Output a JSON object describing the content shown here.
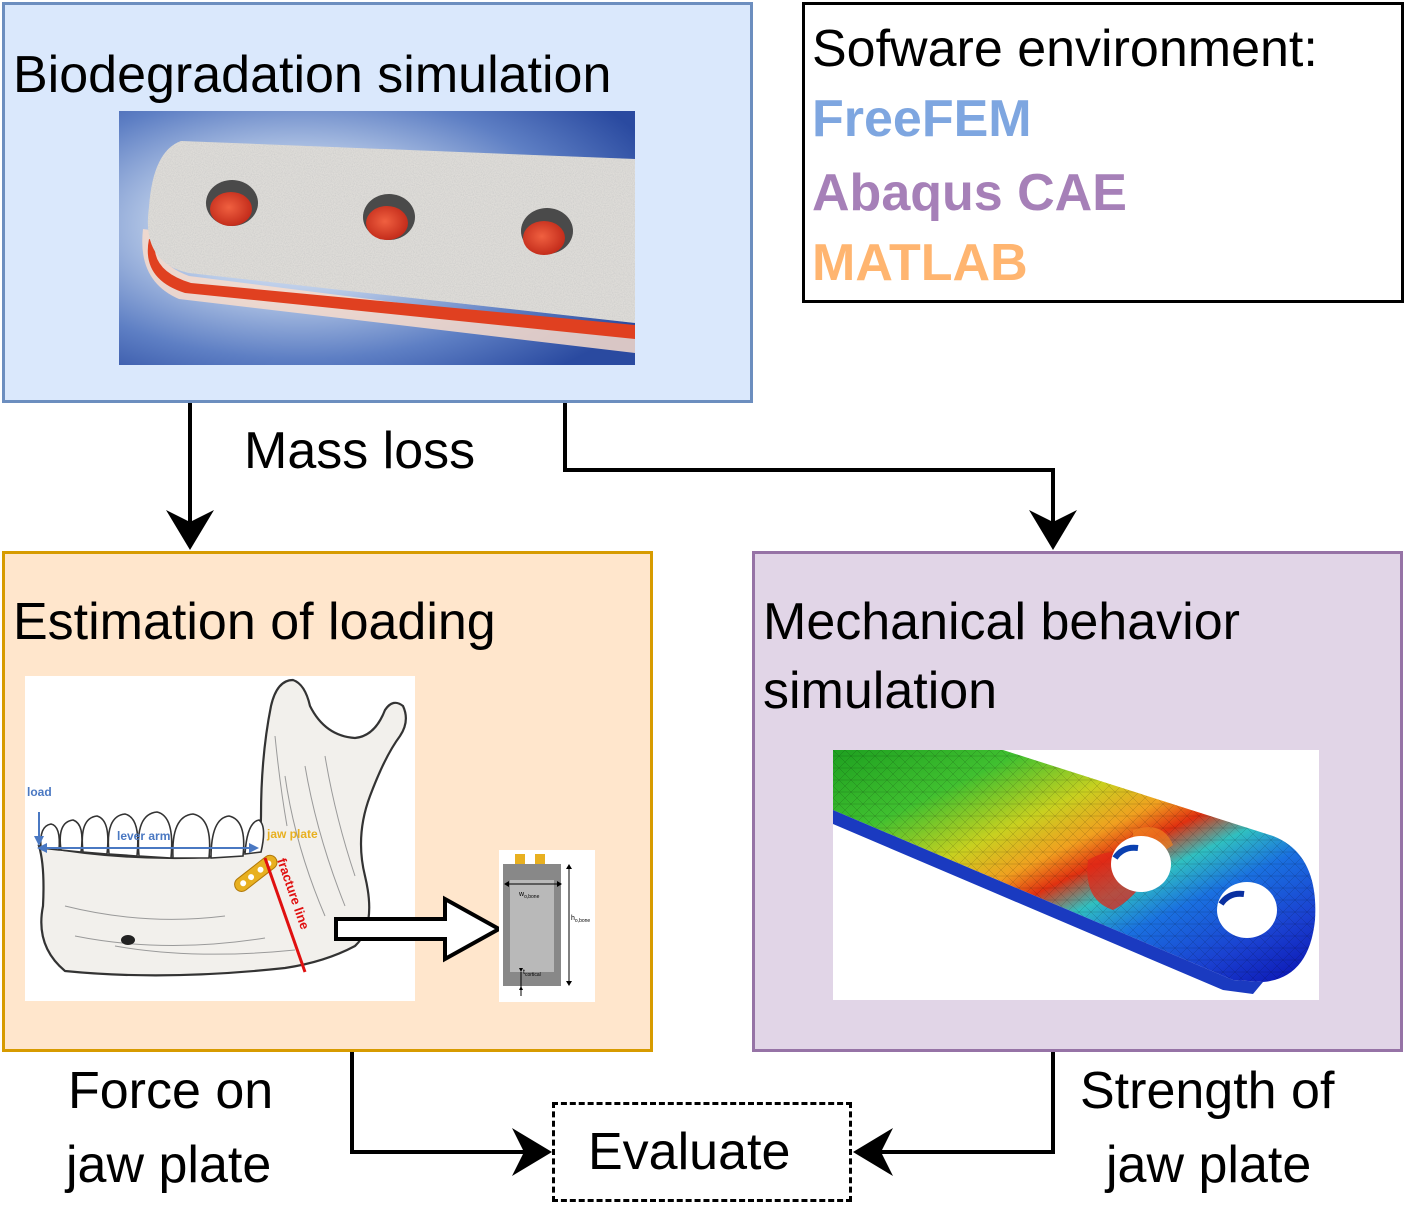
{
  "boxes": {
    "biodegradation": {
      "title": "Biodegradation simulation"
    },
    "loading": {
      "title": "Estimation of loading"
    },
    "mechanical": {
      "title_line1": "Mechanical behavior",
      "title_line2": "simulation"
    },
    "environment": {
      "heading": "Sofware environment:",
      "items": [
        {
          "label": "FreeFEM",
          "color": "#7ea6e0"
        },
        {
          "label": "Abaqus CAE",
          "color": "#a680b8"
        },
        {
          "label": "MATLAB",
          "color": "#ffb570"
        }
      ]
    },
    "evaluate": {
      "label": "Evaluate"
    }
  },
  "edges": {
    "mass_loss": "Mass loss",
    "force_line1": "Force on",
    "force_line2": "jaw plate",
    "strength_line1": "Strength of",
    "strength_line2": "jaw plate"
  },
  "jaw_figure": {
    "load": "load",
    "lever_arm": "lever arm",
    "jaw_plate": "jaw plate",
    "fracture_line": "fracture line",
    "w_label": "w",
    "w_sub": "o,bone",
    "h_label": "h",
    "h_sub": "o,bone",
    "t_label": "t",
    "t_sub": "cortical"
  },
  "colors": {
    "blue_fill": "#dae8fc",
    "blue_stroke": "#6c8ebf",
    "orange_fill": "#ffe6cc",
    "orange_stroke": "#d79b00",
    "purple_fill": "#e1d5e7",
    "purple_stroke": "#9673a6",
    "annotation_blue": "#4a78c2",
    "annotation_gold": "#e8b020",
    "annotation_red": "#e01010"
  }
}
